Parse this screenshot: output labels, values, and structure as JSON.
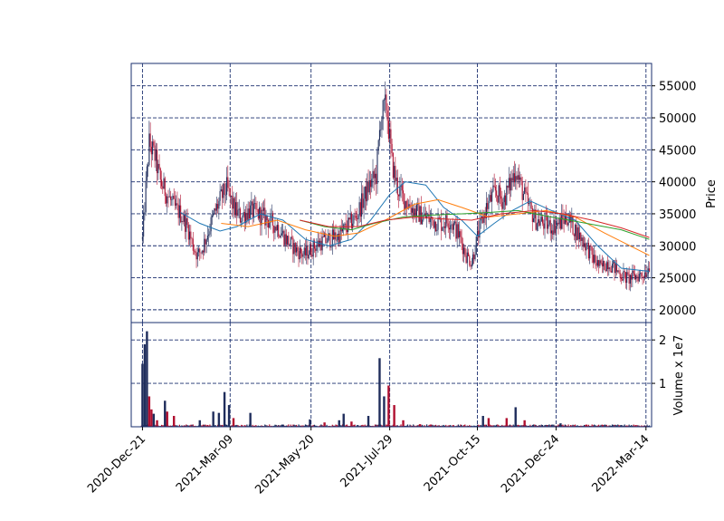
{
  "chart_data": {
    "type": "candlestick",
    "price_axis": {
      "label": "Price",
      "ylim": [
        18000,
        58500
      ],
      "ticks": [
        "20000",
        "25000",
        "30000",
        "35000",
        "40000",
        "45000",
        "50000",
        "55000"
      ],
      "tick_values": [
        20000,
        25000,
        30000,
        35000,
        40000,
        45000,
        50000,
        55000
      ]
    },
    "volume_axis": {
      "label": "Volume x 1e7",
      "ylim": [
        0,
        2.4
      ],
      "ticks": [
        "1",
        "2"
      ],
      "tick_values": [
        1,
        2
      ]
    },
    "x_axis": {
      "type": "date",
      "start": "2020-12-11",
      "end": "2022-03-19",
      "ticks": [
        "2020-Dec-21",
        "2021-Mar-09",
        "2021-May-20",
        "2021-Jul-29",
        "2021-Oct-15",
        "2021-Dec-24",
        "2022-Mar-14"
      ],
      "tick_dates": [
        "2020-12-21",
        "2021-03-09",
        "2021-05-20",
        "2021-07-29",
        "2021-10-15",
        "2021-12-24",
        "2022-03-14"
      ]
    },
    "grid": true,
    "colors": {
      "up": "#1f2d5c",
      "down": "#b01030",
      "grid": "#1a2f6e",
      "ma1": "#1f77b4",
      "ma2": "#ff7f0e",
      "ma3": "#2ca02c",
      "ma4": "#d62728"
    },
    "close_path": [
      [
        "2020-12-21",
        31000
      ],
      [
        "2020-12-24",
        39000
      ],
      [
        "2020-12-27",
        46000
      ],
      [
        "2021-01-01",
        44000
      ],
      [
        "2021-01-06",
        40000
      ],
      [
        "2021-01-12",
        38000
      ],
      [
        "2021-01-18",
        36000
      ],
      [
        "2021-01-24",
        35000
      ],
      [
        "2021-01-30",
        33000
      ],
      [
        "2021-02-04",
        30000
      ],
      [
        "2021-02-08",
        28500
      ],
      [
        "2021-02-12",
        29500
      ],
      [
        "2021-02-18",
        32500
      ],
      [
        "2021-02-24",
        35500
      ],
      [
        "2021-03-01",
        37500
      ],
      [
        "2021-03-06",
        39000
      ],
      [
        "2021-03-12",
        36000
      ],
      [
        "2021-03-18",
        34500
      ],
      [
        "2021-03-26",
        35500
      ],
      [
        "2021-04-03",
        35000
      ],
      [
        "2021-04-12",
        34000
      ],
      [
        "2021-04-20",
        33000
      ],
      [
        "2021-04-28",
        31000
      ],
      [
        "2021-05-06",
        29500
      ],
      [
        "2021-05-14",
        28500
      ],
      [
        "2021-05-20",
        29500
      ],
      [
        "2021-05-28",
        30500
      ],
      [
        "2021-06-05",
        31000
      ],
      [
        "2021-06-13",
        31500
      ],
      [
        "2021-06-21",
        33000
      ],
      [
        "2021-06-29",
        34500
      ],
      [
        "2021-07-05",
        37000
      ],
      [
        "2021-07-11",
        39500
      ],
      [
        "2021-07-17",
        41000
      ],
      [
        "2021-07-21",
        50000
      ],
      [
        "2021-07-26",
        52000
      ],
      [
        "2021-07-31",
        43000
      ],
      [
        "2021-08-05",
        39000
      ],
      [
        "2021-08-12",
        37000
      ],
      [
        "2021-08-20",
        35500
      ],
      [
        "2021-08-28",
        34500
      ],
      [
        "2021-09-05",
        34000
      ],
      [
        "2021-09-13",
        33500
      ],
      [
        "2021-09-21",
        34000
      ],
      [
        "2021-09-29",
        31500
      ],
      [
        "2021-10-05",
        28500
      ],
      [
        "2021-10-10",
        27500
      ],
      [
        "2021-10-16",
        32000
      ],
      [
        "2021-10-23",
        36000
      ],
      [
        "2021-10-31",
        38500
      ],
      [
        "2021-11-07",
        37000
      ],
      [
        "2021-11-14",
        40000
      ],
      [
        "2021-11-18",
        42000
      ],
      [
        "2021-11-24",
        38500
      ],
      [
        "2021-11-30",
        36000
      ],
      [
        "2021-12-06",
        34000
      ],
      [
        "2021-12-13",
        33500
      ],
      [
        "2021-12-20",
        33000
      ],
      [
        "2021-12-27",
        33500
      ],
      [
        "2022-01-03",
        34500
      ],
      [
        "2022-01-08",
        33000
      ],
      [
        "2022-01-14",
        31500
      ],
      [
        "2022-01-20",
        30000
      ],
      [
        "2022-01-26",
        28000
      ],
      [
        "2022-02-02",
        26500
      ],
      [
        "2022-02-08",
        27500
      ],
      [
        "2022-02-14",
        26500
      ],
      [
        "2022-02-20",
        25500
      ],
      [
        "2022-02-26",
        24800
      ],
      [
        "2022-03-04",
        25200
      ],
      [
        "2022-03-10",
        25500
      ],
      [
        "2022-03-14",
        26000
      ],
      [
        "2022-03-17",
        27000
      ]
    ],
    "moving_averages": [
      {
        "color": "ma1",
        "points": [
          [
            "2021-01-24",
            35200
          ],
          [
            "2021-02-10",
            33500
          ],
          [
            "2021-02-28",
            32300
          ],
          [
            "2021-03-15",
            33000
          ],
          [
            "2021-04-05",
            35000
          ],
          [
            "2021-04-25",
            34000
          ],
          [
            "2021-05-15",
            31000
          ],
          [
            "2021-06-05",
            30000
          ],
          [
            "2021-06-25",
            31000
          ],
          [
            "2021-07-12",
            34000
          ],
          [
            "2021-07-29",
            38000
          ],
          [
            "2021-08-12",
            40000
          ],
          [
            "2021-08-30",
            39500
          ],
          [
            "2021-09-15",
            36000
          ],
          [
            "2021-10-01",
            34000
          ],
          [
            "2021-10-15",
            31500
          ],
          [
            "2021-10-30",
            33500
          ],
          [
            "2021-11-15",
            35500
          ],
          [
            "2021-12-01",
            37000
          ],
          [
            "2021-12-20",
            35500
          ],
          [
            "2022-01-10",
            34000
          ],
          [
            "2022-01-30",
            30000
          ],
          [
            "2022-02-20",
            26500
          ],
          [
            "2022-03-17",
            26000
          ]
        ]
      },
      {
        "color": "ma2",
        "points": [
          [
            "2021-03-01",
            33500
          ],
          [
            "2021-03-25",
            33000
          ],
          [
            "2021-04-20",
            34000
          ],
          [
            "2021-05-15",
            32500
          ],
          [
            "2021-06-10",
            31500
          ],
          [
            "2021-07-01",
            32000
          ],
          [
            "2021-07-25",
            34000
          ],
          [
            "2021-08-20",
            36500
          ],
          [
            "2021-09-10",
            37200
          ],
          [
            "2021-10-01",
            36000
          ],
          [
            "2021-10-25",
            34500
          ],
          [
            "2021-11-20",
            35000
          ],
          [
            "2021-12-15",
            35500
          ],
          [
            "2022-01-10",
            34500
          ],
          [
            "2022-02-05",
            32000
          ],
          [
            "2022-03-17",
            28500
          ]
        ]
      },
      {
        "color": "ma3",
        "points": [
          [
            "2021-05-10",
            34000
          ],
          [
            "2021-06-01",
            33000
          ],
          [
            "2021-06-25",
            32500
          ],
          [
            "2021-07-15",
            33500
          ],
          [
            "2021-08-10",
            34500
          ],
          [
            "2021-09-05",
            34800
          ],
          [
            "2021-10-01",
            35000
          ],
          [
            "2021-10-25",
            35200
          ],
          [
            "2021-11-20",
            35500
          ],
          [
            "2021-12-20",
            34500
          ],
          [
            "2022-01-20",
            33500
          ],
          [
            "2022-02-20",
            32500
          ],
          [
            "2022-03-17",
            31000
          ]
        ]
      },
      {
        "color": "ma4",
        "points": [
          [
            "2021-05-10",
            34000
          ],
          [
            "2021-06-05",
            33000
          ],
          [
            "2021-07-01",
            33000
          ],
          [
            "2021-07-25",
            34000
          ],
          [
            "2021-08-20",
            34500
          ],
          [
            "2021-09-15",
            34200
          ],
          [
            "2021-10-10",
            34000
          ],
          [
            "2021-11-05",
            35000
          ],
          [
            "2021-12-05",
            35500
          ],
          [
            "2021-12-30",
            35000
          ],
          [
            "2022-01-25",
            34000
          ],
          [
            "2022-02-20",
            32800
          ],
          [
            "2022-03-17",
            31300
          ]
        ]
      }
    ],
    "volume_spikes": [
      [
        "2020-12-21",
        1.45,
        "up"
      ],
      [
        "2020-12-23",
        1.9,
        "up"
      ],
      [
        "2020-12-25",
        2.2,
        "up"
      ],
      [
        "2020-12-27",
        0.7,
        "down"
      ],
      [
        "2020-12-29",
        0.4,
        "down"
      ],
      [
        "2020-12-31",
        0.3,
        "up"
      ],
      [
        "2021-01-03",
        0.15,
        "down"
      ],
      [
        "2021-01-10",
        0.6,
        "up"
      ],
      [
        "2021-01-12",
        0.35,
        "down"
      ],
      [
        "2021-01-18",
        0.25,
        "down"
      ],
      [
        "2021-02-10",
        0.15,
        "up"
      ],
      [
        "2021-02-22",
        0.35,
        "up"
      ],
      [
        "2021-02-27",
        0.32,
        "up"
      ],
      [
        "2021-03-04",
        0.8,
        "up"
      ],
      [
        "2021-03-08",
        0.5,
        "up"
      ],
      [
        "2021-03-12",
        0.2,
        "down"
      ],
      [
        "2021-03-27",
        0.32,
        "up"
      ],
      [
        "2021-04-25",
        0.05,
        "up"
      ],
      [
        "2021-05-19",
        0.17,
        "up"
      ],
      [
        "2021-06-01",
        0.1,
        "down"
      ],
      [
        "2021-06-14",
        0.15,
        "up"
      ],
      [
        "2021-06-18",
        0.3,
        "up"
      ],
      [
        "2021-06-25",
        0.12,
        "down"
      ],
      [
        "2021-07-10",
        0.25,
        "up"
      ],
      [
        "2021-07-20",
        1.58,
        "up"
      ],
      [
        "2021-07-24",
        0.7,
        "up"
      ],
      [
        "2021-07-28",
        0.95,
        "down"
      ],
      [
        "2021-08-02",
        0.5,
        "down"
      ],
      [
        "2021-08-10",
        0.15,
        "down"
      ],
      [
        "2021-08-25",
        0.06,
        "down"
      ],
      [
        "2021-10-20",
        0.25,
        "up"
      ],
      [
        "2021-10-25",
        0.2,
        "down"
      ],
      [
        "2021-11-10",
        0.2,
        "down"
      ],
      [
        "2021-11-18",
        0.45,
        "up"
      ],
      [
        "2021-11-26",
        0.15,
        "down"
      ],
      [
        "2021-12-28",
        0.08,
        "up"
      ],
      [
        "2022-01-20",
        0.05,
        "down"
      ],
      [
        "2022-02-20",
        0.04,
        "up"
      ]
    ]
  }
}
